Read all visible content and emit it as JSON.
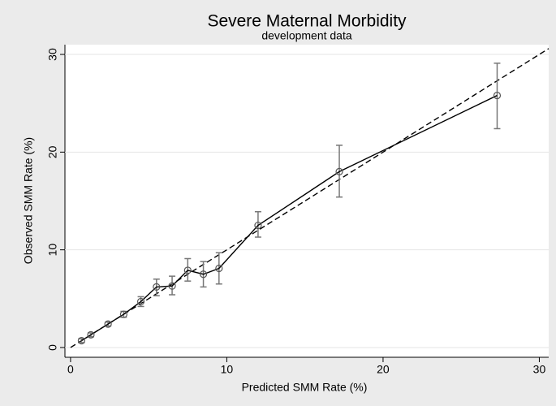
{
  "chart_data": {
    "type": "calibration",
    "title": "Severe Maternal Morbidity",
    "subtitle": "development data",
    "xlabel": "Predicted SMM Rate (%)",
    "ylabel": "Observed SMM Rate (%)",
    "x": [
      0.7,
      1.3,
      2.4,
      3.4,
      4.5,
      5.5,
      6.5,
      7.5,
      8.5,
      9.5,
      12.0,
      17.2,
      27.3
    ],
    "values": [
      0.7,
      1.3,
      2.4,
      3.4,
      4.7,
      6.2,
      6.3,
      7.9,
      7.5,
      8.1,
      12.5,
      18.0,
      25.8
    ],
    "lower": [
      0.5,
      1.1,
      2.2,
      3.1,
      4.2,
      5.3,
      5.4,
      6.8,
      6.2,
      6.5,
      11.3,
      15.4,
      22.4
    ],
    "upper": [
      0.9,
      1.5,
      2.6,
      3.7,
      5.2,
      7.0,
      7.3,
      9.1,
      8.8,
      9.7,
      13.9,
      20.7,
      29.1
    ],
    "line_color": "#000000",
    "marker_color": "#555555",
    "error_color": "#777777",
    "reference_line": {
      "x": [
        0,
        30.6
      ],
      "values": [
        0,
        30.6
      ],
      "color": "#000000",
      "dashed": true
    },
    "xlim": [
      -0.36,
      30.6
    ],
    "ylim": [
      -1.0,
      31.0
    ],
    "xticks": [
      0,
      10,
      20,
      30
    ],
    "yticks": [
      0,
      10,
      20,
      30
    ],
    "grid": "y"
  }
}
